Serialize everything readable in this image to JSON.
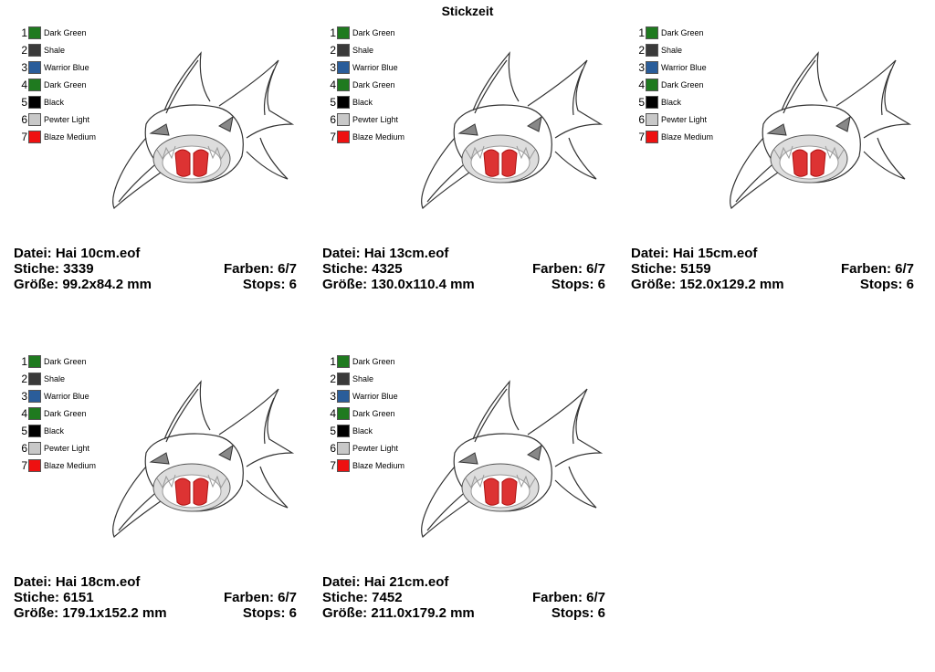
{
  "title": "Stickzeit",
  "panels": [
    {
      "colors": [
        {
          "number": 1,
          "name": "Dark Green",
          "color": "#1f7a1f"
        },
        {
          "number": 2,
          "name": "Shale",
          "color": "#3a3a3a"
        },
        {
          "number": 3,
          "name": "Warrior Blue",
          "color": "#2a5d9a"
        },
        {
          "number": 4,
          "name": "Dark Green",
          "color": "#1f7a1f"
        },
        {
          "number": 5,
          "name": "Black",
          "color": "#000000"
        },
        {
          "number": 6,
          "name": "Pewter Light",
          "color": "#c8c8c8"
        },
        {
          "number": 7,
          "name": "Blaze Medium",
          "color": "#ee1111"
        }
      ],
      "file": "Datei: Hai 10cm.eof",
      "stitches": "Stiche: 3339",
      "colors_used": "Farben: 6/7",
      "size": "Größe: 99.2x84.2 mm",
      "stops": "Stops: 6"
    },
    {
      "colors": [
        {
          "number": 1,
          "name": "Dark Green",
          "color": "#1f7a1f"
        },
        {
          "number": 2,
          "name": "Shale",
          "color": "#3a3a3a"
        },
        {
          "number": 3,
          "name": "Warrior Blue",
          "color": "#2a5d9a"
        },
        {
          "number": 4,
          "name": "Dark Green",
          "color": "#1f7a1f"
        },
        {
          "number": 5,
          "name": "Black",
          "color": "#000000"
        },
        {
          "number": 6,
          "name": "Pewter Light",
          "color": "#c8c8c8"
        },
        {
          "number": 7,
          "name": "Blaze Medium",
          "color": "#ee1111"
        }
      ],
      "file": "Datei: Hai 13cm.eof",
      "stitches": "Stiche: 4325",
      "colors_used": "Farben: 6/7",
      "size": "Größe: 130.0x110.4 mm",
      "stops": "Stops: 6"
    },
    {
      "colors": [
        {
          "number": 1,
          "name": "Dark Green",
          "color": "#1f7a1f"
        },
        {
          "number": 2,
          "name": "Shale",
          "color": "#3a3a3a"
        },
        {
          "number": 3,
          "name": "Warrior Blue",
          "color": "#2a5d9a"
        },
        {
          "number": 4,
          "name": "Dark Green",
          "color": "#1f7a1f"
        },
        {
          "number": 5,
          "name": "Black",
          "color": "#000000"
        },
        {
          "number": 6,
          "name": "Pewter Light",
          "color": "#c8c8c8"
        },
        {
          "number": 7,
          "name": "Blaze Medium",
          "color": "#ee1111"
        }
      ],
      "file": "Datei: Hai 15cm.eof",
      "stitches": "Stiche: 5159",
      "colors_used": "Farben: 6/7",
      "size": "Größe: 152.0x129.2 mm",
      "stops": "Stops: 6"
    },
    {
      "colors": [
        {
          "number": 1,
          "name": "Dark Green",
          "color": "#1f7a1f"
        },
        {
          "number": 2,
          "name": "Shale",
          "color": "#3a3a3a"
        },
        {
          "number": 3,
          "name": "Warrior Blue",
          "color": "#2a5d9a"
        },
        {
          "number": 4,
          "name": "Dark Green",
          "color": "#1f7a1f"
        },
        {
          "number": 5,
          "name": "Black",
          "color": "#000000"
        },
        {
          "number": 6,
          "name": "Pewter Light",
          "color": "#c8c8c8"
        },
        {
          "number": 7,
          "name": "Blaze Medium",
          "color": "#ee1111"
        }
      ],
      "file": "Datei: Hai 18cm.eof",
      "stitches": "Stiche: 6151",
      "colors_used": "Farben: 6/7",
      "size": "Größe: 179.1x152.2 mm",
      "stops": "Stops: 6"
    },
    {
      "colors": [
        {
          "number": 1,
          "name": "Dark Green",
          "color": "#1f7a1f"
        },
        {
          "number": 2,
          "name": "Shale",
          "color": "#3a3a3a"
        },
        {
          "number": 3,
          "name": "Warrior Blue",
          "color": "#2a5d9a"
        },
        {
          "number": 4,
          "name": "Dark Green",
          "color": "#1f7a1f"
        },
        {
          "number": 5,
          "name": "Black",
          "color": "#000000"
        },
        {
          "number": 6,
          "name": "Pewter Light",
          "color": "#c8c8c8"
        },
        {
          "number": 7,
          "name": "Blaze Medium",
          "color": "#ee1111"
        }
      ],
      "file": "Datei: Hai 21cm.eof",
      "stitches": "Stiche: 7452",
      "colors_used": "Farben: 6/7",
      "size": "Größe: 211.0x179.2 mm",
      "stops": "Stops: 6"
    }
  ]
}
